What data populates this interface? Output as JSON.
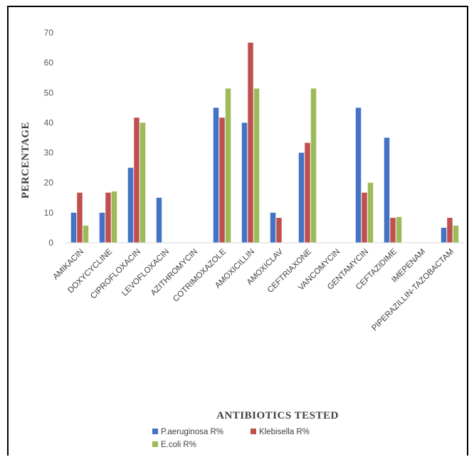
{
  "chart_data": {
    "type": "bar",
    "title": "",
    "xlabel": "ANTIBIOTICS TESTED",
    "ylabel": "PERCENTAGE",
    "ylim": [
      0,
      70
    ],
    "yticks": [
      0,
      10,
      20,
      30,
      40,
      50,
      60,
      70
    ],
    "grid": false,
    "legend_position": "bottom",
    "categories": [
      "AMIKACIN",
      "DOXYCYCLINE",
      "CIPROFLOXACIN",
      "LEVOFLOXACIN",
      "AZITHROMYCIN",
      "COTRIMOXAZOLE",
      "AMOXICILLIN",
      "AMOXICLAV",
      "CEFTRIAXONE",
      "VANCOMYCIN",
      "GENTAMYCIN",
      "CEFTAZIDIME",
      "IMEPENAM",
      "PIPERAZILLIN-TAZOBACTAM"
    ],
    "series": [
      {
        "name": "P.aeruginosa R%",
        "color": "#4472C4",
        "values": [
          10,
          10,
          25,
          15,
          0,
          45,
          40,
          10,
          30,
          0,
          45,
          35,
          0,
          5
        ]
      },
      {
        "name": "Klebisella  R%",
        "color": "#C0504D",
        "values": [
          16.7,
          16.7,
          41.7,
          0,
          0,
          41.7,
          66.7,
          8.3,
          33.3,
          0,
          16.7,
          8.3,
          0,
          8.3
        ]
      },
      {
        "name": "E.coli R%",
        "color": "#9BBB59",
        "values": [
          5.7,
          17.1,
          40,
          0,
          0,
          51.4,
          51.4,
          0,
          51.4,
          0,
          20,
          8.6,
          0,
          5.7
        ]
      }
    ]
  }
}
